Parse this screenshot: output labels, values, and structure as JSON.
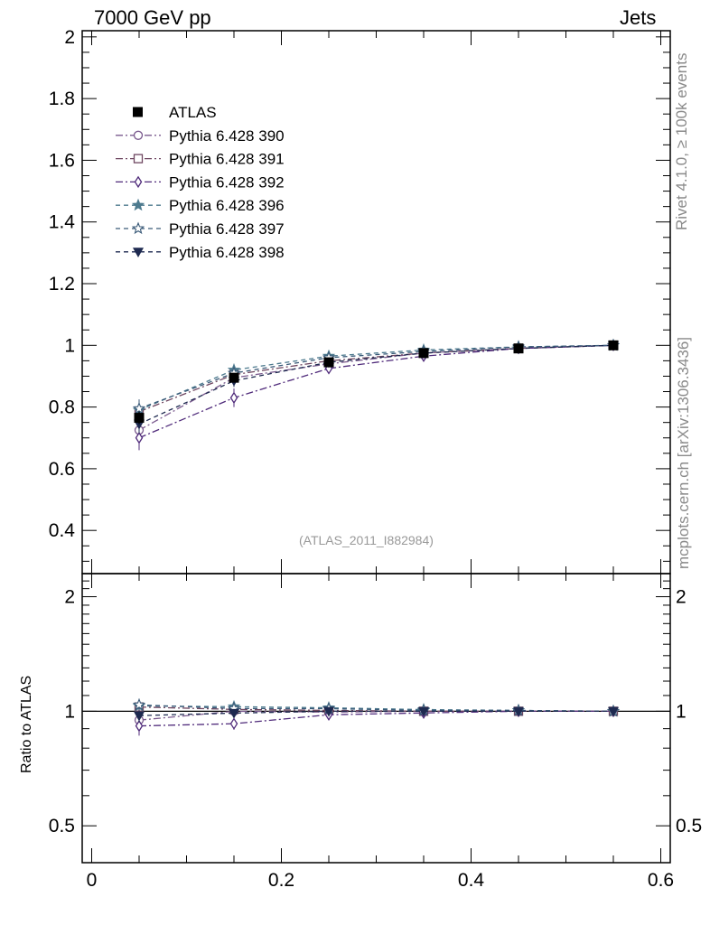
{
  "header": {
    "left": "7000 GeV pp",
    "right": "Jets"
  },
  "side_labels": {
    "rivet": "Rivet 4.1.0, ≥ 100k events",
    "mcplots": "mcplots.cern.ch [arXiv:1306.3436]"
  },
  "annotation": "(ATLAS_2011_I882984)",
  "ratio_ylabel": "Ratio to ATLAS",
  "chart_data": {
    "type": "line",
    "title": "",
    "xlabel": "",
    "ylabel": "",
    "x": [
      0.05,
      0.15,
      0.25,
      0.35,
      0.45,
      0.55
    ],
    "xlim": [
      -0.01,
      0.61
    ],
    "ylim": [
      0.26,
      2.02
    ],
    "ratio_ylim": [
      0.4,
      2.3
    ],
    "xticks": [
      "0",
      "0.2",
      "0.4",
      "0.6"
    ],
    "yticks": [
      "0.4",
      "0.6",
      "0.8",
      "1",
      "1.2",
      "1.4",
      "1.6",
      "1.8",
      "2"
    ],
    "ratio_yticks": [
      "0.5",
      "1",
      "2"
    ],
    "legend_position": "top-left",
    "data": {
      "name": "ATLAS",
      "values": [
        0.765,
        0.895,
        0.945,
        0.975,
        0.99,
        1.0
      ],
      "errors": [
        0.02,
        0.015,
        0.01,
        0.007,
        0.004,
        0.002
      ],
      "color": "#000000"
    },
    "series": [
      {
        "name": "Pythia 6.428 390",
        "values": [
          0.725,
          0.895,
          0.94,
          0.975,
          0.99,
          1.0
        ],
        "errors": [
          0.03,
          0.02,
          0.012,
          0.006,
          0.004,
          0.001
        ],
        "color": "#7a5a8e",
        "marker": "circle-open",
        "dash": "8,3,2,3"
      },
      {
        "name": "Pythia 6.428 391",
        "values": [
          0.785,
          0.905,
          0.95,
          0.975,
          0.99,
          1.0
        ],
        "errors": [
          0.03,
          0.02,
          0.012,
          0.006,
          0.004,
          0.001
        ],
        "color": "#6e4660",
        "marker": "square-open",
        "dash": "8,3,2,3"
      },
      {
        "name": "Pythia 6.428 392",
        "values": [
          0.7,
          0.83,
          0.925,
          0.965,
          0.99,
          1.0
        ],
        "errors": [
          0.04,
          0.03,
          0.014,
          0.008,
          0.004,
          0.001
        ],
        "color": "#4f2a7a",
        "marker": "diamond-open",
        "dash": "8,3,2,3"
      },
      {
        "name": "Pythia 6.428 396",
        "values": [
          0.79,
          0.92,
          0.965,
          0.985,
          0.995,
          1.0
        ],
        "errors": [
          0.03,
          0.02,
          0.01,
          0.006,
          0.004,
          0.001
        ],
        "color": "#4d7a8e",
        "marker": "star-filled",
        "dash": "5,4"
      },
      {
        "name": "Pythia 6.428 397",
        "values": [
          0.795,
          0.91,
          0.96,
          0.98,
          0.995,
          1.0
        ],
        "errors": [
          0.03,
          0.02,
          0.01,
          0.006,
          0.004,
          0.001
        ],
        "color": "#3a5a78",
        "marker": "star-open",
        "dash": "5,4"
      },
      {
        "name": "Pythia 6.428 398",
        "values": [
          0.745,
          0.885,
          0.945,
          0.975,
          0.99,
          1.0
        ],
        "errors": [
          0.03,
          0.02,
          0.01,
          0.006,
          0.004,
          0.001
        ],
        "color": "#1e2a50",
        "marker": "triangle-down-filled",
        "dash": "5,4"
      }
    ]
  }
}
